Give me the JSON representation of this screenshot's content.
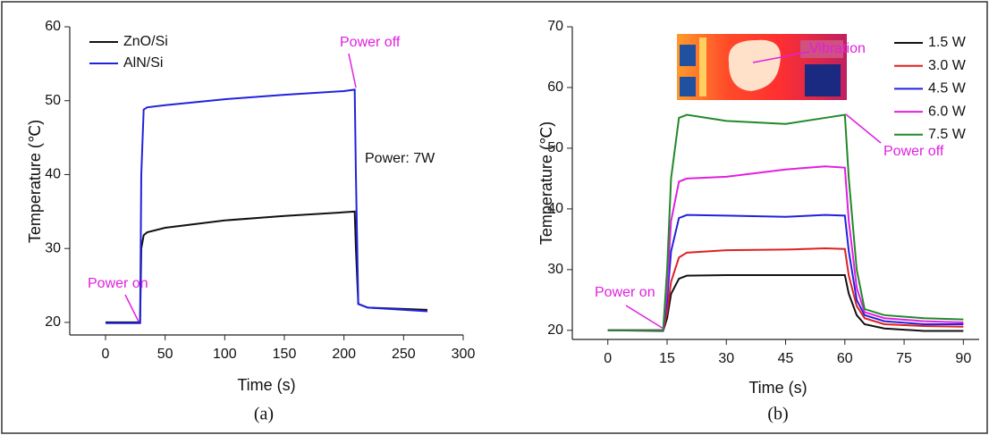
{
  "chart_data": [
    {
      "type": "line",
      "xlabel": "Time (s)",
      "ylabel": "Temperature (℃)",
      "caption": "(a)",
      "xlim": [
        -30,
        300
      ],
      "ylim": [
        18.3,
        60
      ],
      "xticks": [
        0,
        50,
        100,
        150,
        200,
        250,
        300
      ],
      "yticks": [
        20,
        30,
        40,
        50,
        60
      ],
      "x": [
        0,
        29,
        30,
        32,
        35,
        50,
        100,
        150,
        200,
        209,
        210,
        212,
        220,
        270
      ],
      "series": [
        {
          "name": "ZnO/Si",
          "color": "#111111",
          "values": [
            20,
            20,
            30,
            31.8,
            32.2,
            32.8,
            33.8,
            34.4,
            34.9,
            35,
            30,
            22.5,
            22,
            21.7
          ]
        },
        {
          "name": "AlN/Si",
          "color": "#2222dd",
          "values": [
            19.9,
            19.9,
            40,
            48.8,
            49.1,
            49.4,
            50.2,
            50.8,
            51.3,
            51.5,
            40,
            22.5,
            22,
            21.5
          ]
        }
      ],
      "annotations": [
        "Power on",
        "Power off",
        "Power: 7W"
      ]
    },
    {
      "type": "line",
      "xlabel": "Time (s)",
      "ylabel": "Temperature (℃)",
      "caption": "(b)",
      "xlim": [
        -9,
        94
      ],
      "ylim": [
        18.5,
        70
      ],
      "xticks": [
        0,
        15,
        30,
        45,
        60,
        75,
        90
      ],
      "yticks": [
        20,
        30,
        40,
        50,
        60,
        70
      ],
      "x": [
        0,
        14,
        15,
        16,
        18,
        20,
        30,
        45,
        55,
        60,
        61,
        63,
        65,
        70,
        80,
        90
      ],
      "series": [
        {
          "name": "1.5 W",
          "color": "#111111",
          "values": [
            20,
            19.9,
            22,
            26,
            28.5,
            29,
            29.1,
            29.1,
            29.1,
            29.1,
            26,
            22.5,
            21,
            20.3,
            19.9,
            19.9
          ]
        },
        {
          "name": "3.0 W",
          "color": "#e02020",
          "values": [
            20,
            20,
            23,
            28,
            32,
            32.8,
            33.2,
            33.3,
            33.5,
            33.4,
            29,
            24,
            22,
            21,
            20.7,
            20.6
          ]
        },
        {
          "name": "4.5 W",
          "color": "#2222dd",
          "values": [
            20,
            20,
            25,
            33,
            38.5,
            39,
            38.9,
            38.7,
            39,
            38.9,
            33,
            25,
            22.5,
            21.5,
            21,
            21
          ]
        },
        {
          "name": "6.0 W",
          "color": "#e020e0",
          "values": [
            20,
            20,
            27,
            38,
            44.5,
            45,
            45.3,
            46.5,
            47,
            46.8,
            38,
            27,
            23,
            22,
            21.5,
            21.3
          ]
        },
        {
          "name": "7.5 W",
          "color": "#22882a",
          "values": [
            20,
            20,
            30,
            45,
            55,
            55.5,
            54.5,
            54,
            55,
            55.5,
            45,
            30,
            23.5,
            22.5,
            22,
            21.8
          ]
        }
      ],
      "annotations": [
        "Power on",
        "Power off",
        "Vibration"
      ]
    }
  ]
}
